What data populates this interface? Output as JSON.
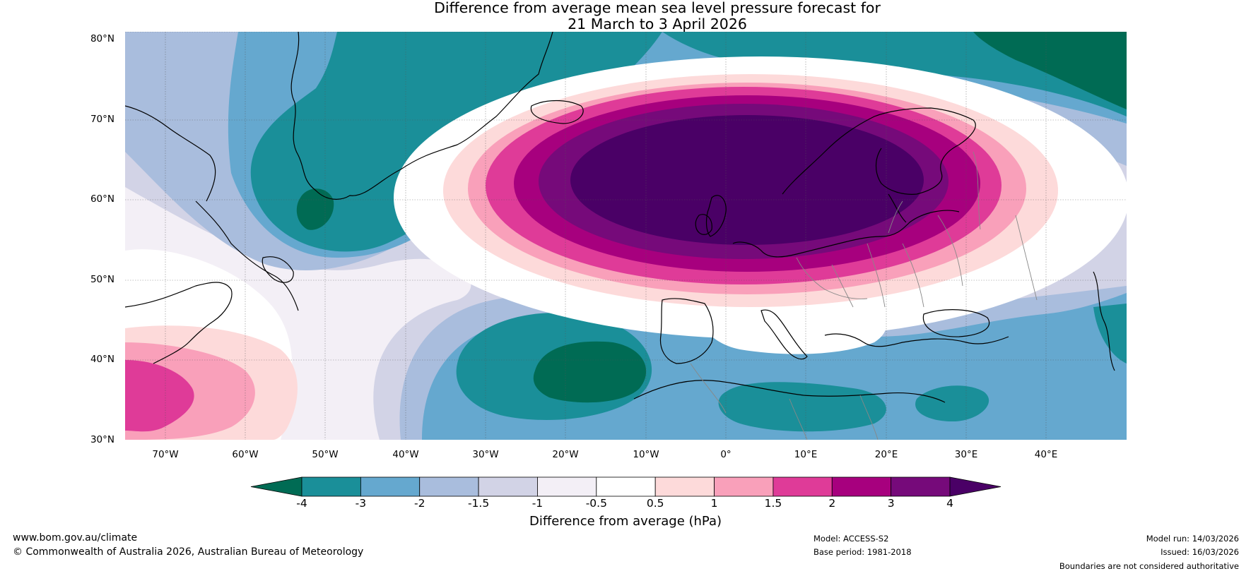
{
  "title_line1": "Difference from average mean sea level pressure forecast for",
  "title_line2": "21 March to 3 April 2026",
  "map": {
    "lat_labels": [
      "80°N",
      "70°N",
      "60°N",
      "50°N",
      "40°N",
      "30°N"
    ],
    "lon_labels": [
      "70°W",
      "60°W",
      "50°W",
      "40°W",
      "30°W",
      "20°W",
      "10°W",
      "0°",
      "10°E",
      "20°E",
      "30°E",
      "40°E"
    ],
    "extent": {
      "lon_min": -75,
      "lon_max": 50,
      "lat_min": 30,
      "lat_max": 81
    },
    "features": {
      "high_anomaly_center": "Scandinavia / North Sea",
      "low_anomaly_centers": [
        "Southeast Greenland",
        "Mid-Atlantic west of Iberia",
        "Arctic north of Scandinavia"
      ]
    }
  },
  "colorbar": {
    "ticks": [
      "-4",
      "-3",
      "-2",
      "-1.5",
      "-1",
      "-0.5",
      "0.5",
      "1",
      "1.5",
      "2",
      "3",
      "4"
    ],
    "colors": [
      "#006b54",
      "#1a8f99",
      "#65a8cf",
      "#a9bddd",
      "#d2d3e6",
      "#f3eff6",
      "#ffffff",
      "#fddada",
      "#f9a0ba",
      "#df3b98",
      "#a7007e",
      "#760a7a",
      "#4a0066"
    ],
    "label": "Difference from average (hPa)"
  },
  "footer": {
    "website": "www.bom.gov.au/climate",
    "copyright": "© Commonwealth of Australia 2026, Australian Bureau of Meteorology",
    "model": "Model: ACCESS-S2",
    "base_period": "Base period: 1981-2018",
    "model_run": "Model run: 14/03/2026",
    "issued": "Issued: 16/03/2026",
    "disclaimer": "Boundaries are not considered authoritative"
  }
}
